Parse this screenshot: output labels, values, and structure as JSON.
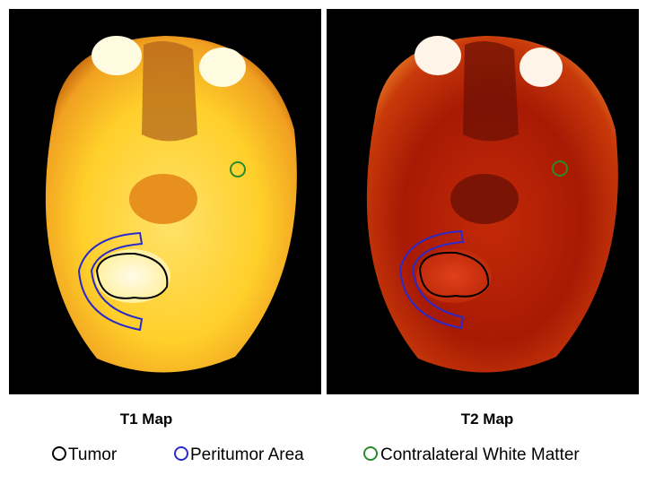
{
  "panels": [
    {
      "caption": "T1 Map"
    },
    {
      "caption": "T2 Map"
    }
  ],
  "legend": [
    {
      "label": "Tumor"
    },
    {
      "label": "Peritumor Area"
    },
    {
      "label": "Contralateral White Matter"
    }
  ]
}
